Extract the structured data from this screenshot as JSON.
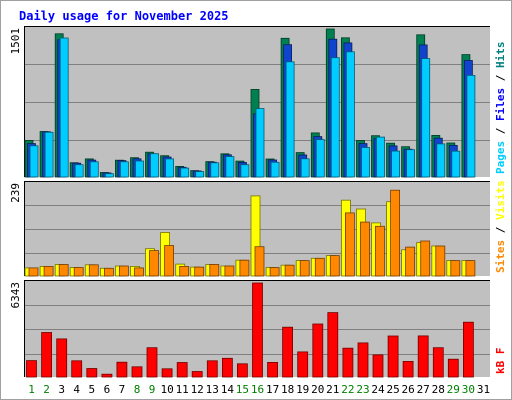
{
  "chart_data": {
    "type": "bar",
    "title": "Daily usage for November 2025",
    "categories": [
      "1",
      "2",
      "3",
      "4",
      "5",
      "6",
      "7",
      "8",
      "9",
      "10",
      "11",
      "12",
      "13",
      "14",
      "15",
      "16",
      "17",
      "18",
      "19",
      "20",
      "21",
      "22",
      "23",
      "24",
      "25",
      "26",
      "27",
      "28",
      "29",
      "30",
      "31"
    ],
    "weekend_days": [
      "1",
      "2",
      "8",
      "9",
      "15",
      "16",
      "22",
      "23",
      "29",
      "30"
    ],
    "panels": [
      {
        "id": "pages-files-hits",
        "ymax_label": "1501",
        "ylim": [
          0,
          1501
        ],
        "grid": true,
        "side_labels": [
          {
            "text": "Pages",
            "color": "#00ccff"
          },
          {
            "text": " / ",
            "color": "#000000"
          },
          {
            "text": "Files",
            "color": "#0000ff"
          },
          {
            "text": " / ",
            "color": "#000000"
          },
          {
            "text": "Hits",
            "color": "#008080"
          }
        ],
        "series": [
          {
            "key": "hits",
            "color": "#008050",
            "values": [
              371,
              461,
              1452,
              145,
              184,
              46,
              170,
              196,
              252,
              216,
              107,
              65,
              156,
              235,
              161,
              888,
              183,
              1407,
              247,
              447,
              1501,
              1412,
              370,
              419,
              343,
              307,
              1442,
              422,
              345,
              1241,
              0
            ]
          },
          {
            "key": "files",
            "color": "#1144cc",
            "values": [
              339,
              458,
              1392,
              140,
              171,
              42,
              166,
              185,
              235,
              203,
              98,
              61,
              150,
              225,
              148,
              640,
              172,
              1342,
              223,
              410,
              1398,
              1360,
              339,
              389,
              315,
              282,
              1340,
              394,
              320,
              1182,
              0
            ]
          },
          {
            "key": "pages",
            "color": "#00ccff",
            "values": [
              316,
              453,
              1410,
              125,
              154,
              33,
              154,
              162,
              236,
              184,
              90,
              55,
              144,
              207,
              125,
              694,
              149,
              1168,
              185,
              379,
              1210,
              1270,
              299,
              405,
              263,
              277,
              1201,
              336,
              262,
              1030,
              0
            ]
          }
        ]
      },
      {
        "id": "sites-visits",
        "ymax_label": "239",
        "ylim": [
          0,
          239
        ],
        "grid": true,
        "side_labels": [
          {
            "text": "Sites",
            "color": "#ff8800"
          },
          {
            "text": " / ",
            "color": "#000000"
          },
          {
            "text": "Visits",
            "color": "#ffff00"
          }
        ],
        "series": [
          {
            "key": "visits",
            "color": "#ffff00",
            "values": [
              21,
              25,
              30,
              22,
              29,
              20,
              26,
              25,
              71,
              113,
              31,
              23,
              30,
              26,
              41,
              208,
              22,
              28,
              40,
              46,
              53,
              197,
              174,
              138,
              193,
              68,
              87,
              78,
              40,
              40,
              0
            ]
          },
          {
            "key": "sites",
            "color": "#ff8800",
            "values": [
              21,
              25,
              30,
              22,
              29,
              20,
              26,
              21,
              66,
              79,
              25,
              23,
              30,
              26,
              41,
              76,
              22,
              28,
              40,
              46,
              53,
              164,
              140,
              129,
              223,
              75,
              91,
              78,
              40,
              40,
              0
            ]
          }
        ]
      },
      {
        "id": "kbytes",
        "ymax_label": "6343",
        "ylim": [
          0,
          6343
        ],
        "grid": true,
        "side_labels": [
          {
            "text": "kB F",
            "color": "#ff0000"
          }
        ],
        "series": [
          {
            "key": "kb",
            "color": "#ff0000",
            "values": [
              1110,
              3006,
              2568,
              1090,
              575,
              191,
              998,
              688,
              1975,
              555,
              981,
              370,
              1091,
              1265,
              891,
              6343,
              986,
              3360,
              1692,
              3573,
              4346,
              1941,
              2304,
              1491,
              2768,
              1056,
              2775,
              1976,
              1201,
              3701,
              0
            ]
          }
        ]
      }
    ]
  },
  "colors": {
    "panel_bg": "#c0c0c0",
    "border_outer": "#808080",
    "grid": "#808080",
    "weekday_label": "#000000",
    "weekend_label": "#008000"
  }
}
